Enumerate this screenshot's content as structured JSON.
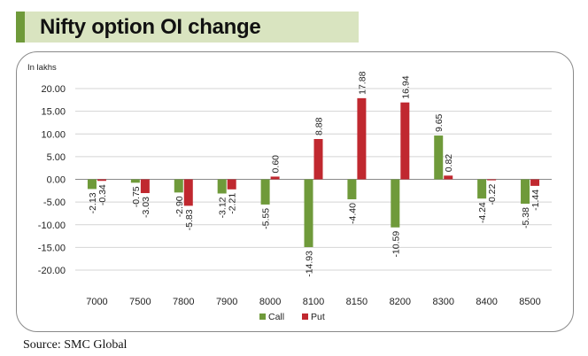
{
  "header": {
    "title": "Nifty option OI change"
  },
  "footer": {
    "source": "Source: SMC Global"
  },
  "colors": {
    "call": "#6f9a3a",
    "put": "#c0282f",
    "accent": "#6f9a3a",
    "title_bg": "#d9e4c0"
  },
  "chart_data": {
    "type": "bar",
    "ylabel": "In lakhs",
    "ylim": [
      -20,
      20
    ],
    "yticks": [
      "20.00",
      "15.00",
      "10.00",
      "5.00",
      "0.00",
      "-5.00",
      "-10.00",
      "-15.00",
      "-20.00"
    ],
    "grid": true,
    "legend": "bottom",
    "categories": [
      "7000",
      "7500",
      "7800",
      "7900",
      "8000",
      "8100",
      "8150",
      "8200",
      "8300",
      "8400",
      "8500"
    ],
    "series": [
      {
        "name": "Call",
        "values": [
          -2.13,
          -0.75,
          -2.9,
          -3.12,
          -5.55,
          -14.93,
          -4.4,
          -10.59,
          9.65,
          -4.24,
          -5.38
        ]
      },
      {
        "name": "Put",
        "values": [
          -0.34,
          -3.03,
          -5.83,
          -2.21,
          0.6,
          8.88,
          17.88,
          16.94,
          0.82,
          -0.22,
          -1.44
        ]
      }
    ]
  }
}
